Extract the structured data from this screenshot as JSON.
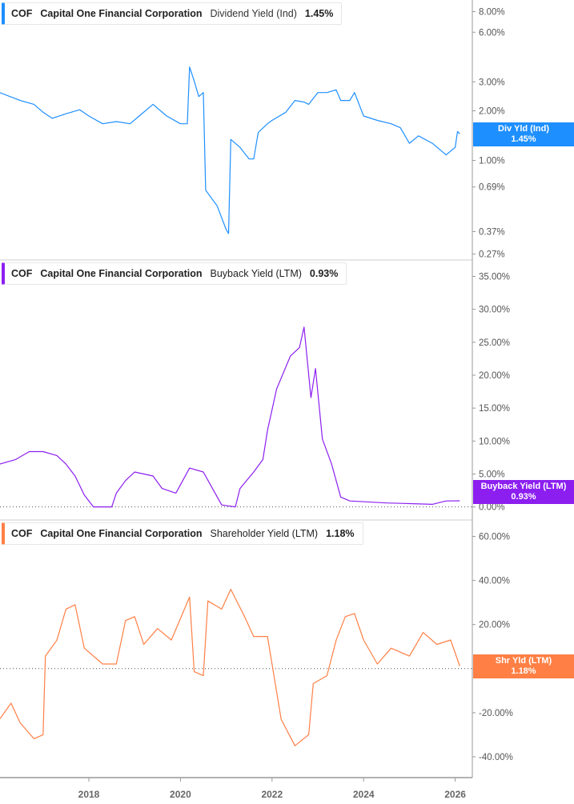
{
  "ticker": "COF",
  "company": "Capital One Financial Corporation",
  "chart_data": [
    {
      "type": "line",
      "scale": "log",
      "metric": "Dividend Yield (Ind)",
      "value_label": "1.45%",
      "tag_title": "Div Yld (Ind)",
      "tag_value": "1.45%",
      "color": "#1e8fff",
      "yticks": [
        8,
        6,
        3,
        2,
        1,
        0.69,
        0.37,
        0.27
      ],
      "ytick_labels": [
        "8.00%",
        "6.00%",
        "3.00%",
        "2.00%",
        "1.00%",
        "0.69%",
        "0.37%",
        "0.27%"
      ],
      "ylim": [
        0.26,
        9
      ],
      "x": [
        2016.05,
        2016.5,
        2016.8,
        2017.0,
        2017.2,
        2017.5,
        2017.8,
        2018.0,
        2018.3,
        2018.6,
        2018.9,
        2019.1,
        2019.4,
        2019.7,
        2020.0,
        2020.15,
        2020.2,
        2020.3,
        2020.4,
        2020.5,
        2020.55,
        2020.8,
        2021.0,
        2021.05,
        2021.1,
        2021.3,
        2021.5,
        2021.6,
        2021.7,
        2021.9,
        2022.0,
        2022.3,
        2022.5,
        2022.7,
        2022.8,
        2023.0,
        2023.2,
        2023.4,
        2023.5,
        2023.7,
        2023.8,
        2024.0,
        2024.3,
        2024.6,
        2024.8,
        2025.0,
        2025.2,
        2025.5,
        2025.8,
        2026.0,
        2026.05,
        2026.1
      ],
      "y": [
        2.58,
        2.31,
        2.19,
        1.96,
        1.8,
        1.92,
        2.03,
        1.86,
        1.67,
        1.72,
        1.67,
        1.86,
        2.19,
        1.86,
        1.67,
        1.67,
        3.69,
        3.03,
        2.44,
        2.58,
        0.66,
        0.53,
        0.38,
        0.36,
        1.34,
        1.2,
        1.02,
        1.02,
        1.48,
        1.67,
        1.75,
        1.96,
        2.31,
        2.26,
        2.19,
        2.58,
        2.58,
        2.68,
        2.31,
        2.31,
        2.58,
        1.86,
        1.75,
        1.67,
        1.58,
        1.27,
        1.41,
        1.27,
        1.08,
        1.2,
        1.5,
        1.45
      ]
    },
    {
      "type": "line",
      "metric": "Buyback Yield (LTM)",
      "value_label": "0.93%",
      "tag_title": "Buyback Yield (LTM)",
      "tag_value": "0.93%",
      "color": "#8c1ff0",
      "yticks": [
        35,
        30,
        25,
        20,
        15,
        10,
        5,
        0
      ],
      "ytick_labels": [
        "35.00%",
        "30.00%",
        "25.00%",
        "20.00%",
        "15.00%",
        "10.00%",
        "5.00%",
        "0.00%"
      ],
      "ylim": [
        -1.5,
        37
      ],
      "x": [
        2016.05,
        2016.4,
        2016.7,
        2017.0,
        2017.3,
        2017.5,
        2017.7,
        2017.9,
        2018.1,
        2018.5,
        2018.6,
        2018.8,
        2019.0,
        2019.4,
        2019.6,
        2019.9,
        2020.2,
        2020.5,
        2020.7,
        2020.9,
        2021.2,
        2021.3,
        2021.6,
        2021.8,
        2021.9,
        2022.1,
        2022.4,
        2022.6,
        2022.7,
        2022.85,
        2022.95,
        2023.1,
        2023.3,
        2023.5,
        2023.7,
        2024.5,
        2025.0,
        2025.5,
        2025.8,
        2026.1
      ],
      "y": [
        6.5,
        7.2,
        8.4,
        8.4,
        7.8,
        6.5,
        4.7,
        1.8,
        0,
        0,
        2.1,
        4.0,
        5.3,
        4.7,
        2.8,
        2.1,
        5.9,
        5.3,
        2.8,
        0.3,
        0,
        2.8,
        5.3,
        7.2,
        11.6,
        17.9,
        22.9,
        24.2,
        27.3,
        16.6,
        21.0,
        10.3,
        6.5,
        1.5,
        0.9,
        0.6,
        0.5,
        0.4,
        0.9,
        0.93
      ]
    },
    {
      "type": "line",
      "metric": "Shareholder Yield (LTM)",
      "value_label": "1.18%",
      "tag_title": "Shr Yld (LTM)",
      "tag_value": "1.18%",
      "color": "#ff7f45",
      "yticks": [
        60,
        40,
        20,
        0,
        -20,
        -40
      ],
      "ytick_labels": [
        "60.00%",
        "40.00%",
        "20.00%",
        "0.00%",
        "-20.00%",
        "-40.00%"
      ],
      "ylim": [
        -48,
        66
      ],
      "x": [
        2016.05,
        2016.3,
        2016.5,
        2016.8,
        2017.0,
        2017.05,
        2017.3,
        2017.5,
        2017.7,
        2017.9,
        2018.3,
        2018.6,
        2018.8,
        2019.0,
        2019.2,
        2019.5,
        2019.8,
        2020.2,
        2020.3,
        2020.5,
        2020.6,
        2020.9,
        2021.1,
        2021.4,
        2021.6,
        2021.9,
        2022.0,
        2022.2,
        2022.5,
        2022.8,
        2022.9,
        2023.2,
        2023.4,
        2023.6,
        2023.8,
        2024.0,
        2024.3,
        2024.6,
        2025.0,
        2025.3,
        2025.6,
        2025.9,
        2026.1
      ],
      "y": [
        -23,
        -15.7,
        -24.6,
        -31.8,
        -30,
        5.7,
        12.9,
        27,
        29,
        9.3,
        2.1,
        2.1,
        21.8,
        23.6,
        11,
        18.2,
        13,
        32.5,
        -1.4,
        -3.2,
        30.7,
        27,
        36,
        23.6,
        14.6,
        14.6,
        2.1,
        -23,
        -35,
        -30,
        -6.8,
        -3.2,
        12.9,
        23.6,
        25,
        13,
        2.1,
        9.3,
        5.7,
        16.4,
        11,
        13,
        1.18
      ]
    }
  ],
  "x_axis": {
    "ticks": [
      2018,
      2020,
      2022,
      2024,
      2026
    ],
    "labels": [
      "2018",
      "2020",
      "2022",
      "2024",
      "2026"
    ]
  }
}
